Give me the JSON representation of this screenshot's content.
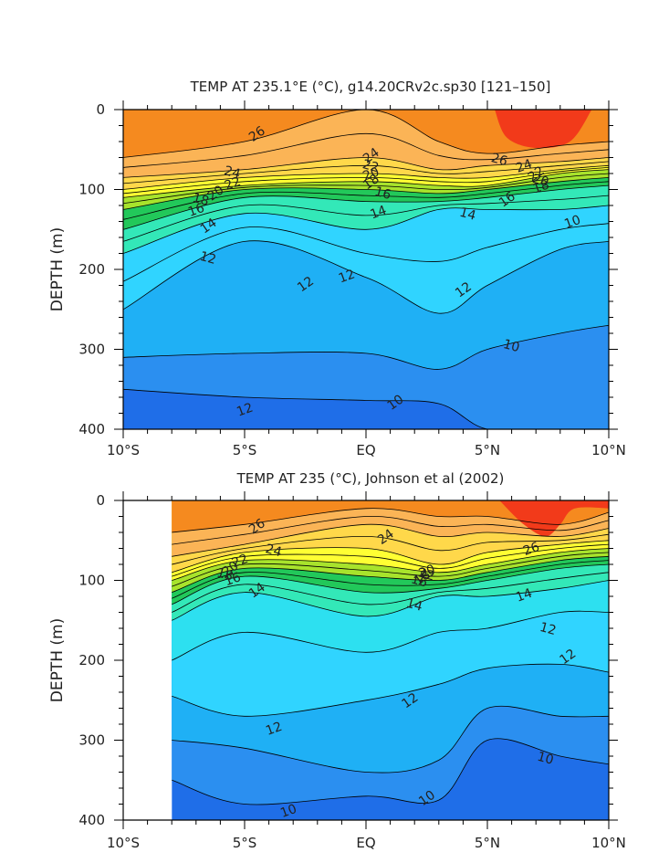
{
  "chart_data": [
    {
      "type": "filled-contour",
      "title": "TEMP AT 235.1°E (°C), g14.20CRv2c.sp30 [121–150]",
      "xlabel": "",
      "ylabel": "DEPTH (m)",
      "x_range": [
        -10,
        10
      ],
      "y_range": [
        0,
        400
      ],
      "y_reversed": true,
      "x_ticks": [
        "10°S",
        "5°S",
        "EQ",
        "5°N",
        "10°N"
      ],
      "y_ticks": [
        "0",
        "100",
        "200",
        "300",
        "400"
      ],
      "data_x_range": [
        -10,
        10
      ],
      "contour_labels": [
        "26",
        "24",
        "22",
        "20",
        "18",
        "16",
        "14",
        "12",
        "12",
        "12",
        "26",
        "24",
        "22",
        "20",
        "18",
        "16",
        "14",
        "12",
        "10",
        "10",
        "10",
        "24",
        "22",
        "20",
        "18",
        "16",
        "14",
        "12"
      ],
      "isotherms": [
        {
          "level": 10,
          "x": [
            -10,
            -5,
            0,
            3,
            5,
            8,
            10
          ],
          "depth": [
            350,
            360,
            364,
            368,
            400,
            400,
            400
          ]
        },
        {
          "level": 11,
          "x": [
            -10,
            -5,
            0,
            3,
            5,
            8,
            10
          ],
          "depth": [
            310,
            305,
            305,
            325,
            300,
            280,
            270
          ]
        },
        {
          "level": 12,
          "x": [
            -10,
            -5,
            0,
            3,
            5,
            8,
            10
          ],
          "depth": [
            250,
            165,
            210,
            255,
            220,
            175,
            165
          ]
        },
        {
          "level": 14,
          "x": [
            -10,
            -5,
            0,
            3,
            5,
            8,
            10
          ],
          "depth": [
            180,
            130,
            150,
            125,
            125,
            125,
            120
          ]
        },
        {
          "level": 16,
          "x": [
            -10,
            -5,
            0,
            3,
            5,
            8,
            10
          ],
          "depth": [
            150,
            110,
            115,
            115,
            110,
            100,
            95
          ]
        },
        {
          "level": 18,
          "x": [
            -10,
            -5,
            0,
            3,
            5,
            8,
            10
          ],
          "depth": [
            125,
            100,
            100,
            105,
            100,
            90,
            85
          ]
        },
        {
          "level": 20,
          "x": [
            -10,
            -5,
            0,
            3,
            5,
            8,
            10
          ],
          "depth": [
            110,
            95,
            90,
            95,
            95,
            80,
            75
          ]
        },
        {
          "level": 22,
          "x": [
            -10,
            -5,
            0,
            3,
            5,
            8,
            10
          ],
          "depth": [
            100,
            85,
            80,
            85,
            85,
            75,
            70
          ]
        },
        {
          "level": 24,
          "x": [
            -10,
            -5,
            0,
            3,
            5,
            8,
            10
          ],
          "depth": [
            85,
            75,
            60,
            75,
            70,
            65,
            60
          ]
        },
        {
          "level": 26,
          "x": [
            -10,
            -5,
            0,
            3,
            5,
            8,
            10
          ],
          "depth": [
            60,
            40,
            0,
            40,
            55,
            45,
            40
          ]
        }
      ]
    },
    {
      "type": "filled-contour",
      "title": "TEMP AT 235 (°C), Johnson et al (2002)",
      "xlabel": "",
      "ylabel": "DEPTH (m)",
      "x_range": [
        -10,
        10
      ],
      "y_range": [
        0,
        400
      ],
      "y_reversed": true,
      "x_ticks": [
        "10°S",
        "5°S",
        "EQ",
        "5°N",
        "10°N"
      ],
      "y_ticks": [
        "0",
        "100",
        "200",
        "300",
        "400"
      ],
      "data_x_range": [
        -8,
        10
      ],
      "contour_labels": [
        "26",
        "24",
        "22",
        "20",
        "18",
        "16",
        "14",
        "14",
        "12",
        "12",
        "12",
        "10",
        "10",
        "10",
        "26",
        "24",
        "22",
        "20",
        "18",
        "16",
        "14",
        "12"
      ],
      "isotherms": [
        {
          "level": 10,
          "x": [
            -8,
            -5,
            0,
            3,
            5,
            8,
            10
          ],
          "depth": [
            350,
            380,
            370,
            375,
            300,
            320,
            330
          ]
        },
        {
          "level": 11,
          "x": [
            -8,
            -5,
            0,
            3,
            5,
            8,
            10
          ],
          "depth": [
            300,
            310,
            340,
            325,
            260,
            270,
            270
          ]
        },
        {
          "level": 12,
          "x": [
            -8,
            -5,
            0,
            3,
            5,
            8,
            10
          ],
          "depth": [
            245,
            270,
            250,
            230,
            210,
            205,
            215
          ]
        },
        {
          "level": 13,
          "x": [
            -8,
            -5,
            0,
            3,
            5,
            8,
            10
          ],
          "depth": [
            200,
            165,
            190,
            165,
            160,
            140,
            140
          ]
        },
        {
          "level": 14,
          "x": [
            -8,
            -5,
            0,
            3,
            5,
            8,
            10
          ],
          "depth": [
            150,
            115,
            145,
            120,
            120,
            110,
            100
          ]
        },
        {
          "level": 16,
          "x": [
            -8,
            -5,
            0,
            3,
            5,
            8,
            10
          ],
          "depth": [
            130,
            95,
            115,
            110,
            100,
            85,
            80
          ]
        },
        {
          "level": 18,
          "x": [
            -8,
            -5,
            0,
            3,
            5,
            8,
            10
          ],
          "depth": [
            115,
            85,
            95,
            100,
            90,
            75,
            70
          ]
        },
        {
          "level": 20,
          "x": [
            -8,
            -5,
            0,
            3,
            5,
            8,
            10
          ],
          "depth": [
            100,
            75,
            80,
            90,
            80,
            65,
            60
          ]
        },
        {
          "level": 22,
          "x": [
            -8,
            -5,
            0,
            3,
            5,
            8,
            10
          ],
          "depth": [
            90,
            65,
            60,
            80,
            65,
            55,
            50
          ]
        },
        {
          "level": 24,
          "x": [
            -8,
            -5,
            0,
            3,
            5,
            8,
            10
          ],
          "depth": [
            70,
            55,
            30,
            45,
            40,
            45,
            35
          ]
        },
        {
          "level": 26,
          "x": [
            -8,
            -5,
            0,
            3,
            5,
            8,
            10
          ],
          "depth": [
            40,
            30,
            10,
            20,
            20,
            30,
            15
          ]
        }
      ]
    }
  ],
  "colors": {
    "t_lt10": "#0a2fe0",
    "t10": "#1f6ee8",
    "t11": "#2b8ff0",
    "t12": "#1fb0f5",
    "t13": "#30d4ff",
    "t14": "#2de0f0",
    "t15": "#33e8b8",
    "t16": "#22c85a",
    "t17": "#59d63a",
    "t18": "#a8e32c",
    "t20": "#ffff33",
    "t22": "#ffd84a",
    "t24": "#fbb456",
    "t26": "#f58a1f",
    "t28": "#f23a1a"
  }
}
